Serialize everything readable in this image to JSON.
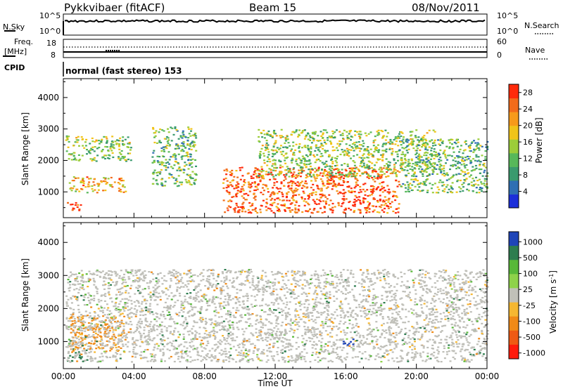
{
  "header": {
    "station": "Pykkvibaer (fitACF)",
    "beam": "Beam 15",
    "date": "08/Nov/2011"
  },
  "nsky_panel": {
    "left_label": "N.Sky",
    "left_ticks": [
      "10^5",
      "10^0"
    ],
    "right_ticks": [
      "10^5",
      "10^0"
    ],
    "right_label": "N.Search",
    "right_legend_style": "dotted"
  },
  "freq_panel": {
    "left_label_1": "Freq.",
    "left_label_2": "[MHz]",
    "left_ticks": [
      "18",
      "8"
    ],
    "right_ticks": [
      "60",
      "0"
    ],
    "right_label": "Nave",
    "right_legend_style": "dotted"
  },
  "cpid": {
    "label": "CPID",
    "mode": "normal (fast stereo) 153"
  },
  "colors": {
    "power_scale": [
      "#1c2fd9",
      "#2f6fb3",
      "#3a9a6e",
      "#57b85a",
      "#9ccd3a",
      "#f0c419",
      "#f79a1a",
      "#f26b1a",
      "#ff2a0a"
    ],
    "velocity_scale": [
      "#1f45b8",
      "#2e7d4f",
      "#58b839",
      "#8ed24a",
      "#c0c0b8",
      "#f5b731",
      "#f08a17",
      "#ef5a13",
      "#ff1b0b"
    ],
    "ground_scatter": "#bfbfb8"
  },
  "chart_data": [
    {
      "type": "heatmap",
      "title": "",
      "ylabel": "Slant Range [km]",
      "xlabel": "Time UT",
      "x_ticks": [
        "00:00",
        "04:00",
        "08:00",
        "12:00",
        "16:00",
        "20:00",
        "00:00"
      ],
      "x_range_hours": [
        0,
        24
      ],
      "y_ticks": [
        1000,
        2000,
        3000,
        4000
      ],
      "ylim": [
        180,
        4600
      ],
      "colorbar": {
        "label": "Power [dB]",
        "ticks": [
          4,
          8,
          12,
          16,
          20,
          24,
          28
        ],
        "range": [
          0,
          30
        ]
      },
      "features": [
        {
          "feature": "near-range patch",
          "time_hours": [
            0.2,
            1.0
          ],
          "range_km": [
            400,
            700
          ],
          "power_db": 28
        },
        {
          "feature": "evening band",
          "time_hours": [
            0.3,
            3.5
          ],
          "range_km": [
            1000,
            1500
          ],
          "power_db": 20
        },
        {
          "feature": "upper band",
          "time_hours": [
            0.1,
            3.8
          ],
          "range_km": [
            2000,
            2800
          ],
          "power_db": 14
        },
        {
          "feature": "midnight arc",
          "time_hours": [
            5.0,
            7.5
          ],
          "range_km": [
            1200,
            3100
          ],
          "power_db": 12
        },
        {
          "feature": "morning enhancement",
          "time_hours": [
            9.0,
            19.0
          ],
          "range_km": [
            350,
            1800
          ],
          "power_db": 26
        },
        {
          "feature": "streaked echoes",
          "time_hours": [
            11.0,
            21.0
          ],
          "range_km": [
            1500,
            3000
          ],
          "power_db": 14
        },
        {
          "feature": "afternoon arc",
          "time_hours": [
            19.0,
            24.0
          ],
          "range_km": [
            1000,
            2700
          ],
          "power_db": 12
        }
      ]
    },
    {
      "type": "heatmap",
      "title": "",
      "ylabel": "Slant Range [km]",
      "xlabel": "Time UT",
      "x_ticks": [
        "00:00",
        "04:00",
        "08:00",
        "12:00",
        "16:00",
        "20:00",
        "00:00"
      ],
      "x_range_hours": [
        0,
        24
      ],
      "y_ticks": [
        1000,
        2000,
        3000,
        4000
      ],
      "ylim": [
        180,
        4600
      ],
      "colorbar": {
        "label": "Velocity [m s^-1]",
        "ticks": [
          1000,
          500,
          100,
          25,
          -25,
          -100,
          -500,
          -1000
        ],
        "range": [
          -1000,
          1000
        ]
      },
      "features": [
        {
          "feature": "near-range echoes",
          "time_hours": [
            0.2,
            1.0
          ],
          "range_km": [
            400,
            700
          ],
          "velocity_ms": 300
        },
        {
          "feature": "negative velocity band",
          "time_hours": [
            0.3,
            3.5
          ],
          "range_km": [
            700,
            1800
          ],
          "velocity_ms": -150
        },
        {
          "feature": "ground scatter region",
          "time_hours": [
            0.1,
            24.0
          ],
          "range_km": [
            400,
            3200
          ],
          "velocity_ms": 0
        },
        {
          "feature": "positive velocity patch",
          "time_hours": [
            15.8,
            16.6
          ],
          "range_km": [
            900,
            1100
          ],
          "velocity_ms": 800
        }
      ]
    }
  ]
}
